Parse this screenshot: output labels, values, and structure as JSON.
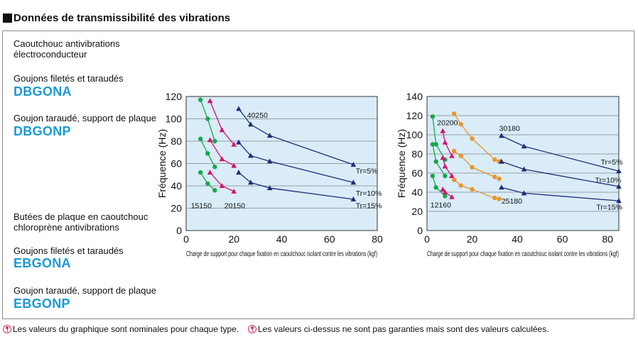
{
  "header": {
    "title": "Données de transmissibilité des vibrations"
  },
  "sections": [
    {
      "category": "Caoutchouc antivibrations électroconducteur",
      "category_line1": "Caoutchouc antivibrations",
      "category_line2": "électroconducteur",
      "items": [
        {
          "label": "Goujons filetés et taraudés",
          "model": "DBGONA"
        },
        {
          "label": "Goujon taraudé, support de plaque",
          "model": "DBGONP"
        }
      ]
    },
    {
      "category": "Butées de plaque en caoutchouc chloroprène antivibrations",
      "category_line1": "Butées de plaque en caoutchouc",
      "category_line2": "chloroprène antivibrations",
      "items": [
        {
          "label": "Goujons filetés et taraudés",
          "model": "EBGONA"
        },
        {
          "label": "Goujon taraudé, support de plaque",
          "model": "EBGONP"
        }
      ]
    }
  ],
  "footer": {
    "note1": "Les valeurs du graphique sont nominales pour chaque type.",
    "note2": "Les valeurs ci-dessus ne sont pas garanties mais sont des valeurs calculées."
  },
  "colors": {
    "plot_bg": "#d9ecf8",
    "grid": "#555555",
    "green": "#1aa64a",
    "magenta": "#d0166c",
    "orange": "#e8962a",
    "navy": "#1f2c7a",
    "accent": "#1a9ad6"
  },
  "chart_data": [
    {
      "type": "line",
      "ylabel": "Fréquence (Hz)",
      "xlabel": "Charge de support pour chaque fixation en caoutchouc isolant contre les vibrations (kgf)",
      "xlim": [
        0,
        80
      ],
      "ylim": [
        0,
        120
      ],
      "xticks": [
        0,
        20,
        40,
        60,
        80
      ],
      "yticks": [
        0,
        20,
        40,
        60,
        80,
        100,
        120
      ],
      "annotations": [
        {
          "text": "40250",
          "x": 25.5,
          "y": 101,
          "anchor": "start"
        },
        {
          "text": "15150",
          "x": 2,
          "y": 20,
          "anchor": "start"
        },
        {
          "text": "20150",
          "x": 16,
          "y": 20,
          "anchor": "start"
        },
        {
          "text": "Tr=5%",
          "x": 71,
          "y": 51,
          "anchor": "start"
        },
        {
          "text": "Tr=10%",
          "x": 71,
          "y": 31,
          "anchor": "start"
        },
        {
          "text": "Tr=15%",
          "x": 71,
          "y": 20,
          "anchor": "start"
        }
      ],
      "series": [
        {
          "color": "green",
          "marker": "circle",
          "points": [
            [
              6,
              117
            ],
            [
              9,
              100
            ],
            [
              12,
              80
            ]
          ]
        },
        {
          "color": "green",
          "marker": "circle",
          "points": [
            [
              6,
              82
            ],
            [
              9,
              69
            ],
            [
              12,
              57
            ]
          ]
        },
        {
          "color": "green",
          "marker": "circle",
          "points": [
            [
              6,
              52
            ],
            [
              9,
              42
            ],
            [
              12,
              36
            ]
          ]
        },
        {
          "color": "magenta",
          "marker": "triangle",
          "points": [
            [
              10,
              116
            ],
            [
              15,
              90
            ],
            [
              20,
              77
            ]
          ]
        },
        {
          "color": "magenta",
          "marker": "triangle",
          "points": [
            [
              10,
              81
            ],
            [
              15,
              64
            ],
            [
              20,
              58
            ]
          ]
        },
        {
          "color": "magenta",
          "marker": "triangle",
          "points": [
            [
              10,
              52
            ],
            [
              15,
              40
            ],
            [
              20,
              35
            ]
          ]
        },
        {
          "color": "navy",
          "marker": "triangle",
          "points": [
            [
              22,
              109
            ],
            [
              27,
              95
            ],
            [
              35,
              85
            ],
            [
              70,
              59
            ]
          ]
        },
        {
          "color": "navy",
          "marker": "triangle",
          "points": [
            [
              22,
              79
            ],
            [
              27,
              67
            ],
            [
              35,
              62
            ],
            [
              70,
              43
            ]
          ]
        },
        {
          "color": "navy",
          "marker": "triangle",
          "points": [
            [
              22,
              52
            ],
            [
              27,
              43
            ],
            [
              35,
              38
            ],
            [
              70,
              28
            ]
          ]
        }
      ]
    },
    {
      "type": "line",
      "ylabel": "Fréquence (Hz)",
      "xlabel": "Charge de support pour chaque fixation en caoutchouc isolant contre les vibrations (kgf)",
      "xlim": [
        0,
        85
      ],
      "ylim": [
        0,
        140
      ],
      "xticks": [
        0,
        20,
        40,
        60,
        80
      ],
      "yticks": [
        0,
        20,
        40,
        60,
        80,
        100,
        120,
        140
      ],
      "annotations": [
        {
          "text": "20200",
          "x": 4.5,
          "y": 110,
          "anchor": "start"
        },
        {
          "text": "30180",
          "x": 32,
          "y": 104,
          "anchor": "start"
        },
        {
          "text": "12160",
          "x": 1.5,
          "y": 24,
          "anchor": "start"
        },
        {
          "text": "25180",
          "x": 33,
          "y": 28,
          "anchor": "start"
        },
        {
          "text": "Tr=5%",
          "x": 77,
          "y": 69,
          "anchor": "start"
        },
        {
          "text": "Tr=10%",
          "x": 74.5,
          "y": 50,
          "anchor": "start"
        },
        {
          "text": "Tr=15%",
          "x": 75,
          "y": 22,
          "anchor": "start"
        }
      ],
      "series": [
        {
          "color": "green",
          "marker": "circle",
          "points": [
            [
              2.5,
              119
            ],
            [
              4,
              90
            ],
            [
              8,
              74
            ]
          ]
        },
        {
          "color": "green",
          "marker": "circle",
          "points": [
            [
              2.5,
              90
            ],
            [
              4,
              72
            ],
            [
              8,
              57
            ]
          ]
        },
        {
          "color": "green",
          "marker": "circle",
          "points": [
            [
              2.5,
              57
            ],
            [
              4,
              45
            ],
            [
              8,
              36
            ]
          ]
        },
        {
          "color": "magenta",
          "marker": "triangle",
          "points": [
            [
              7,
              104
            ],
            [
              8,
              92
            ],
            [
              11,
              78
            ]
          ]
        },
        {
          "color": "magenta",
          "marker": "triangle",
          "points": [
            [
              7,
              76
            ],
            [
              8,
              67
            ],
            [
              11,
              57
            ]
          ]
        },
        {
          "color": "magenta",
          "marker": "triangle",
          "points": [
            [
              7,
              43
            ],
            [
              8,
              40
            ],
            [
              11,
              35
            ]
          ]
        },
        {
          "color": "orange",
          "marker": "circle",
          "points": [
            [
              12,
              122
            ],
            [
              15,
              111
            ],
            [
              20,
              96
            ],
            [
              30,
              74
            ],
            [
              32,
              72
            ]
          ]
        },
        {
          "color": "orange",
          "marker": "circle",
          "points": [
            [
              12,
              83
            ],
            [
              15,
              78
            ],
            [
              20,
              66
            ],
            [
              30,
              56
            ],
            [
              32,
              54
            ]
          ]
        },
        {
          "color": "orange",
          "marker": "circle",
          "points": [
            [
              12,
              53
            ],
            [
              15,
              47
            ],
            [
              20,
              43
            ],
            [
              30,
              34
            ],
            [
              32,
              33
            ]
          ]
        },
        {
          "color": "navy",
          "marker": "triangle",
          "points": [
            [
              33,
              99
            ],
            [
              43,
              88
            ],
            [
              85,
              62
            ]
          ]
        },
        {
          "color": "navy",
          "marker": "triangle",
          "points": [
            [
              33,
              72
            ],
            [
              43,
              64
            ],
            [
              85,
              46
            ]
          ]
        },
        {
          "color": "navy",
          "marker": "triangle",
          "points": [
            [
              33,
              45
            ],
            [
              43,
              39
            ],
            [
              85,
              31
            ]
          ]
        }
      ]
    }
  ]
}
